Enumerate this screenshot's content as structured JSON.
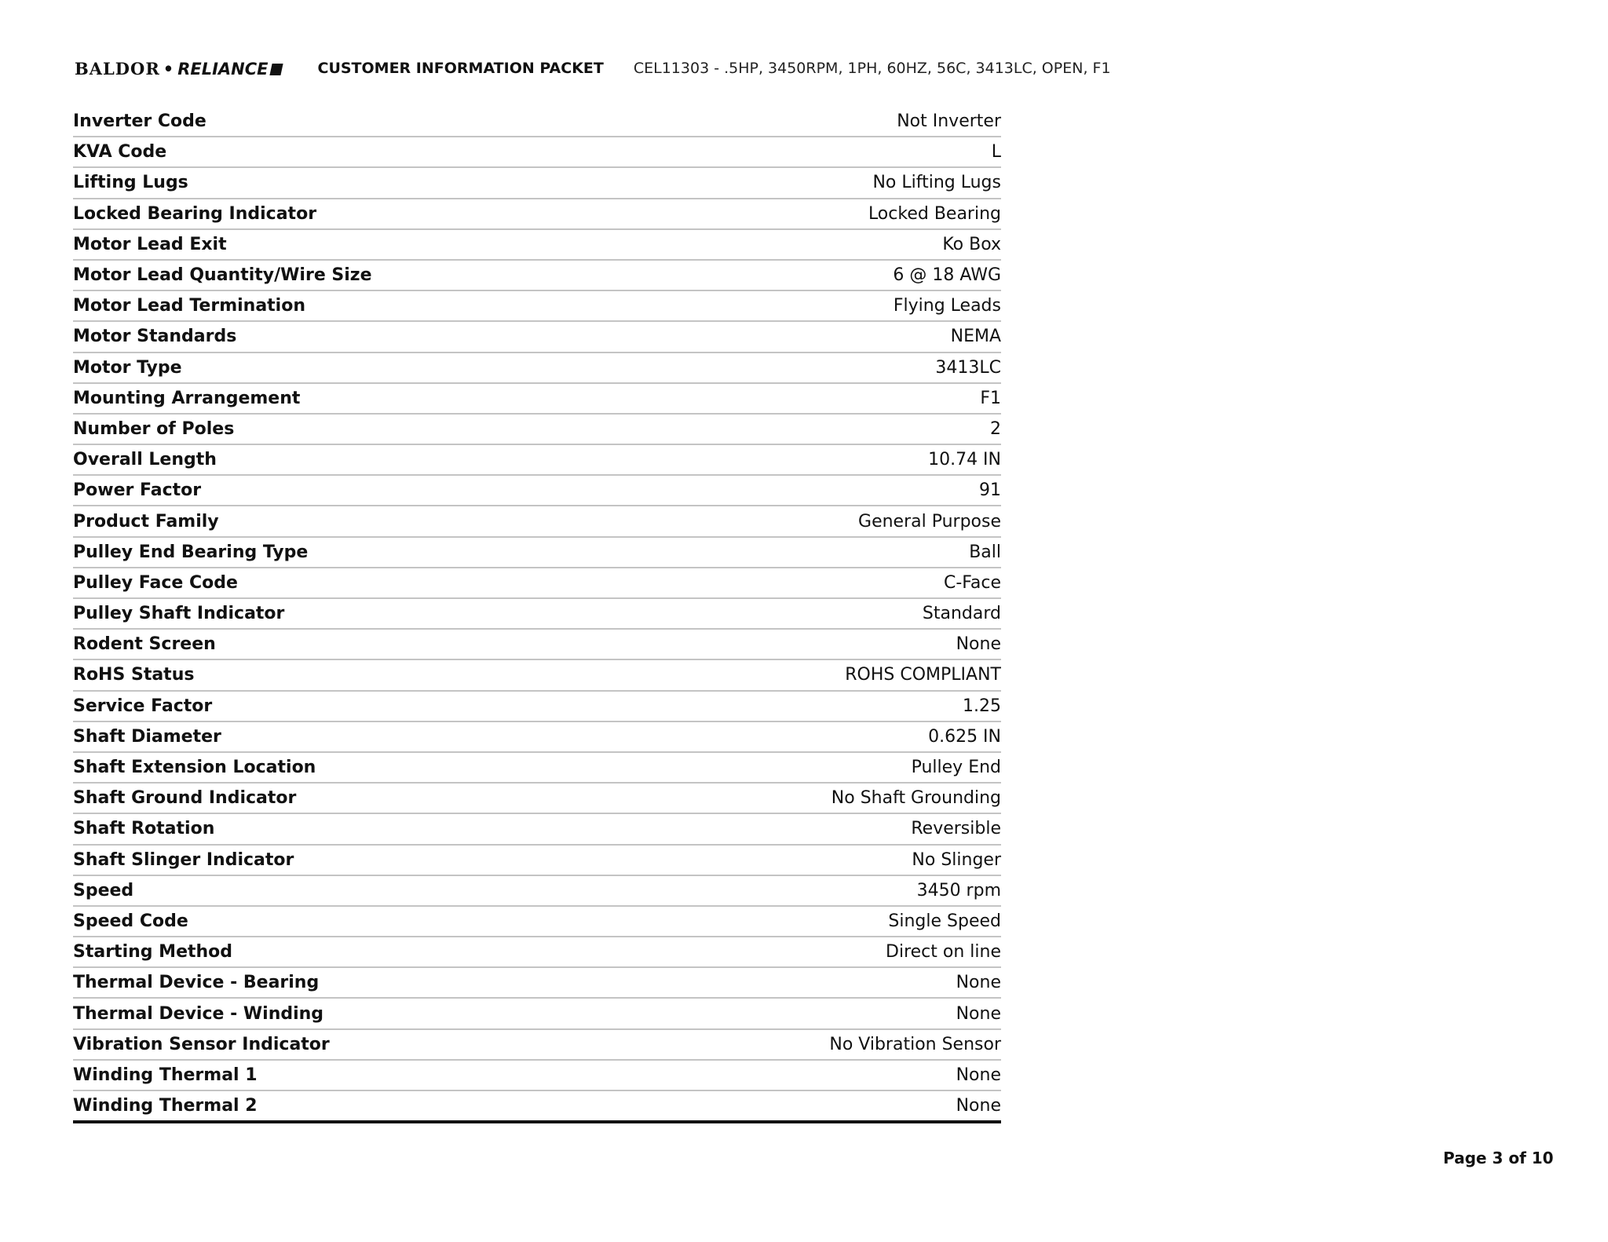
{
  "header": {
    "logo_text": "BALDOR • RELIANCE",
    "logo_left": "BALDOR",
    "logo_right": "RELIANCE",
    "title": "CUSTOMER INFORMATION PACKET",
    "subtitle": "CEL11303 - .5HP, 3450RPM, 1PH, 60HZ, 56C, 3413LC, OPEN, F1"
  },
  "rows": [
    {
      "label": "Inverter Code",
      "value": "Not Inverter"
    },
    {
      "label": "KVA Code",
      "value": "L"
    },
    {
      "label": "Lifting Lugs",
      "value": "No Lifting Lugs"
    },
    {
      "label": "Locked Bearing Indicator",
      "value": "Locked Bearing"
    },
    {
      "label": "Motor Lead Exit",
      "value": "Ko Box"
    },
    {
      "label": "Motor Lead Quantity/Wire Size",
      "value": "6 @ 18 AWG"
    },
    {
      "label": "Motor Lead Termination",
      "value": "Flying Leads"
    },
    {
      "label": "Motor Standards",
      "value": "NEMA"
    },
    {
      "label": "Motor Type",
      "value": "3413LC"
    },
    {
      "label": "Mounting Arrangement",
      "value": "F1"
    },
    {
      "label": "Number of Poles",
      "value": "2"
    },
    {
      "label": "Overall Length",
      "value": "10.74 IN"
    },
    {
      "label": "Power Factor",
      "value": "91"
    },
    {
      "label": "Product Family",
      "value": "General Purpose"
    },
    {
      "label": "Pulley End Bearing Type",
      "value": "Ball"
    },
    {
      "label": "Pulley Face Code",
      "value": "C-Face"
    },
    {
      "label": "Pulley Shaft Indicator",
      "value": "Standard"
    },
    {
      "label": "Rodent Screen",
      "value": "None"
    },
    {
      "label": "RoHS Status",
      "value": "ROHS COMPLIANT"
    },
    {
      "label": "Service Factor",
      "value": "1.25"
    },
    {
      "label": "Shaft Diameter",
      "value": "0.625 IN"
    },
    {
      "label": "Shaft Extension Location",
      "value": "Pulley End"
    },
    {
      "label": "Shaft Ground Indicator",
      "value": "No Shaft Grounding"
    },
    {
      "label": "Shaft Rotation",
      "value": "Reversible"
    },
    {
      "label": "Shaft Slinger Indicator",
      "value": "No Slinger"
    },
    {
      "label": "Speed",
      "value": "3450 rpm"
    },
    {
      "label": "Speed Code",
      "value": "Single Speed"
    },
    {
      "label": "Starting Method",
      "value": "Direct on line"
    },
    {
      "label": "Thermal Device - Bearing",
      "value": "None"
    },
    {
      "label": "Thermal Device - Winding",
      "value": "None"
    },
    {
      "label": "Vibration Sensor Indicator",
      "value": "No Vibration Sensor"
    },
    {
      "label": "Winding Thermal 1",
      "value": "None"
    },
    {
      "label": "Winding Thermal 2",
      "value": "None"
    }
  ],
  "footer": {
    "page": "Page 3 of 10"
  }
}
